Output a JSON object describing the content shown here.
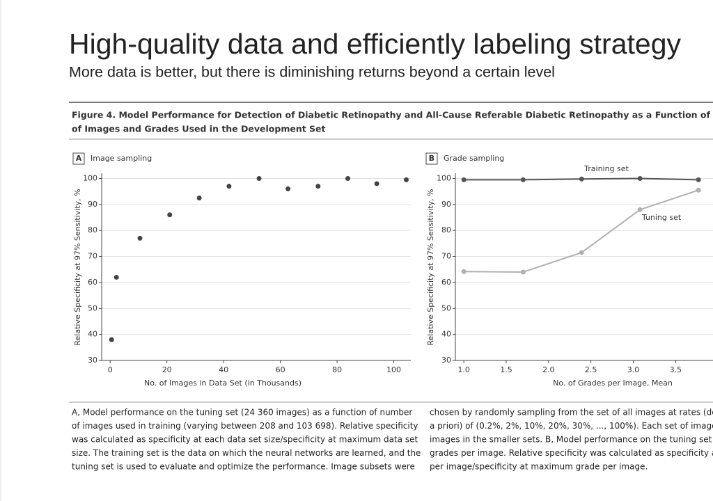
{
  "slide": {
    "title": "High-quality data and efficiently labeling strategy",
    "subtitle": "More data is better, but there is diminishing returns beyond a certain level"
  },
  "figure": {
    "caption_lines": [
      "Figure 4. Model Performance for Detection of Diabetic Retinopathy and All-Cause Referable Diabetic Retinopathy as a Function of the Number",
      "of Images and Grades Used in the Development Set"
    ],
    "notes_left": [
      "A, Model performance on the tuning set (24 360 images) as a function of number",
      "of images used in training (varying between 208 and 103 698). Relative specificity",
      "was calculated as specificity at each data set size/specificity at maximum data set",
      "size. The training set is the data on which the neural networks are learned, and the",
      "tuning set is used to evaluate and optimize the performance. Image subsets were"
    ],
    "notes_right": [
      "chosen by randomly sampling from the set of all images at rates (determined",
      "a priori) of (0.2%, 2%, 10%, 20%, 30%, ..., 100%). Each set of images includes all",
      "images in the smaller sets. B, Model performance on the tuning set as a function of",
      "grades per image. Relative specificity was calculated as specificity at each grade",
      "per image/specificity at maximum grade per image."
    ]
  },
  "chart_data": [
    {
      "type": "scatter",
      "panel": "A",
      "title": "Image sampling",
      "x_label": "No. of Images in Data Set (in Thousands)",
      "y_label": "Relative Specificity at 97% Sensitivity, %",
      "color": "#444444",
      "x": [
        0.5,
        2.2,
        10.5,
        21,
        31.4,
        41.9,
        52.5,
        62.7,
        73.3,
        83.8,
        94,
        104.4
      ],
      "values": [
        38,
        62,
        77,
        86,
        92.5,
        97,
        100,
        96,
        97,
        100,
        98,
        99.5
      ],
      "xlim": [
        -3,
        106
      ],
      "xticks": [
        0,
        20,
        40,
        60,
        80,
        100
      ],
      "ylim": [
        30,
        102
      ],
      "yticks": [
        30,
        40,
        50,
        60,
        70,
        80,
        90,
        100
      ],
      "grid": true
    },
    {
      "type": "line",
      "panel": "B",
      "title": "Grade sampling",
      "x_label": "No. of Grades per Image, Mean",
      "y_label": "Relative Specificity at 97% Sensitivity, %",
      "annotations": [
        "Training set",
        "Tuning set"
      ],
      "x": [
        1.0,
        1.7,
        2.39,
        3.08,
        3.77
      ],
      "series": [
        {
          "name": "Training set",
          "color": "#555555",
          "values": [
            99.5,
            99.5,
            99.8,
            100,
            99.5
          ]
        },
        {
          "name": "Tuning set",
          "color": "#b0b0b0",
          "values": [
            64.2,
            64,
            71.5,
            88,
            95.5
          ]
        }
      ],
      "xlim": [
        0.9,
        4.27
      ],
      "xticks": [
        {
          "value": 1,
          "label": "1.0"
        },
        {
          "value": 1.5,
          "label": "1.5"
        },
        {
          "value": 2,
          "label": "2.0"
        },
        {
          "value": 2.5,
          "label": "2.5"
        },
        {
          "value": 3,
          "label": "3.0"
        },
        {
          "value": 3.5,
          "label": "3.5"
        }
      ],
      "ylim": [
        30,
        102
      ],
      "yticks": [
        30,
        40,
        50,
        60,
        70,
        80,
        90,
        100
      ],
      "grid": true
    }
  ]
}
